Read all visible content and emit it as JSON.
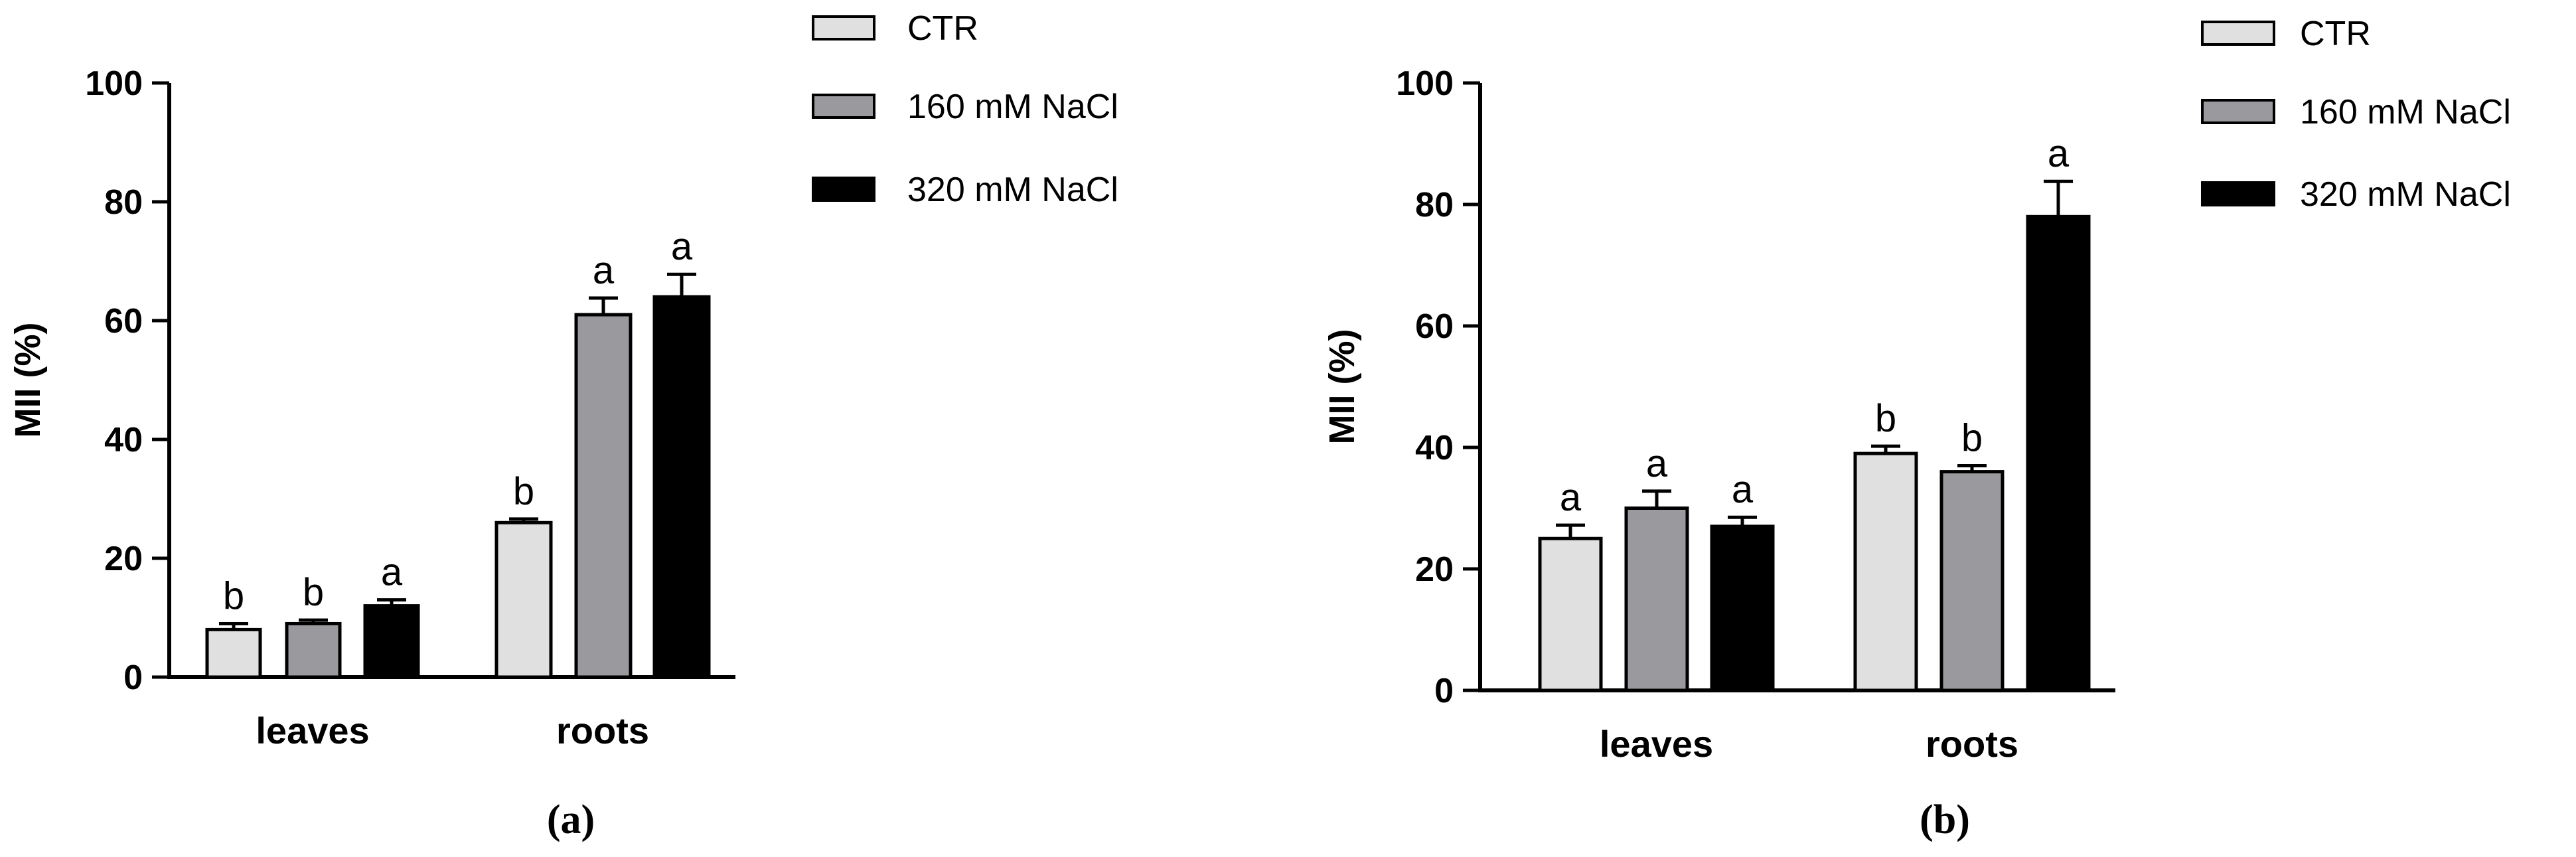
{
  "chart_data": [
    {
      "type": "bar",
      "panel_label": "(a)",
      "ylabel": "MII (%)",
      "ylim": [
        0,
        100
      ],
      "yticks": [
        "0",
        "20",
        "40",
        "60",
        "80",
        "100"
      ],
      "categories": [
        "leaves",
        "roots"
      ],
      "series": [
        {
          "name": "CTR",
          "color": "#e0e0e0",
          "values": [
            8,
            26
          ],
          "errors": [
            1,
            0.6
          ],
          "letters": [
            "b",
            "b"
          ]
        },
        {
          "name": "160 mM NaCl",
          "color": "#9a9a9e",
          "values": [
            9,
            61
          ],
          "errors": [
            0.6,
            2.8
          ],
          "letters": [
            "b",
            "a"
          ]
        },
        {
          "name": "320 mM NaCl",
          "color": "#000000",
          "values": [
            12,
            64
          ],
          "errors": [
            1,
            3.8
          ],
          "letters": [
            "a",
            "a"
          ]
        }
      ],
      "legend": {
        "position": "top-right",
        "entries": [
          "CTR",
          "160 mM NaCl",
          "320 mM NaCl"
        ]
      },
      "grid": false
    },
    {
      "type": "bar",
      "panel_label": "(b)",
      "ylabel": "MII (%)",
      "ylim": [
        0,
        100
      ],
      "yticks": [
        "0",
        "20",
        "40",
        "60",
        "80",
        "100"
      ],
      "categories": [
        "leaves",
        "roots"
      ],
      "series": [
        {
          "name": "CTR",
          "color": "#e0e0e0",
          "values": [
            25,
            39
          ],
          "errors": [
            2.2,
            1.2
          ],
          "letters": [
            "a",
            "b"
          ]
        },
        {
          "name": "160 mM NaCl",
          "color": "#9a9a9e",
          "values": [
            30,
            36
          ],
          "errors": [
            2.8,
            1.0
          ],
          "letters": [
            "a",
            "b"
          ]
        },
        {
          "name": "320 mM NaCl",
          "color": "#000000",
          "values": [
            27,
            78
          ],
          "errors": [
            1.5,
            5.8
          ],
          "letters": [
            "a",
            "a"
          ]
        }
      ],
      "legend": {
        "position": "top-right",
        "entries": [
          "CTR",
          "160 mM NaCl",
          "320 mM NaCl"
        ]
      },
      "grid": false
    }
  ]
}
